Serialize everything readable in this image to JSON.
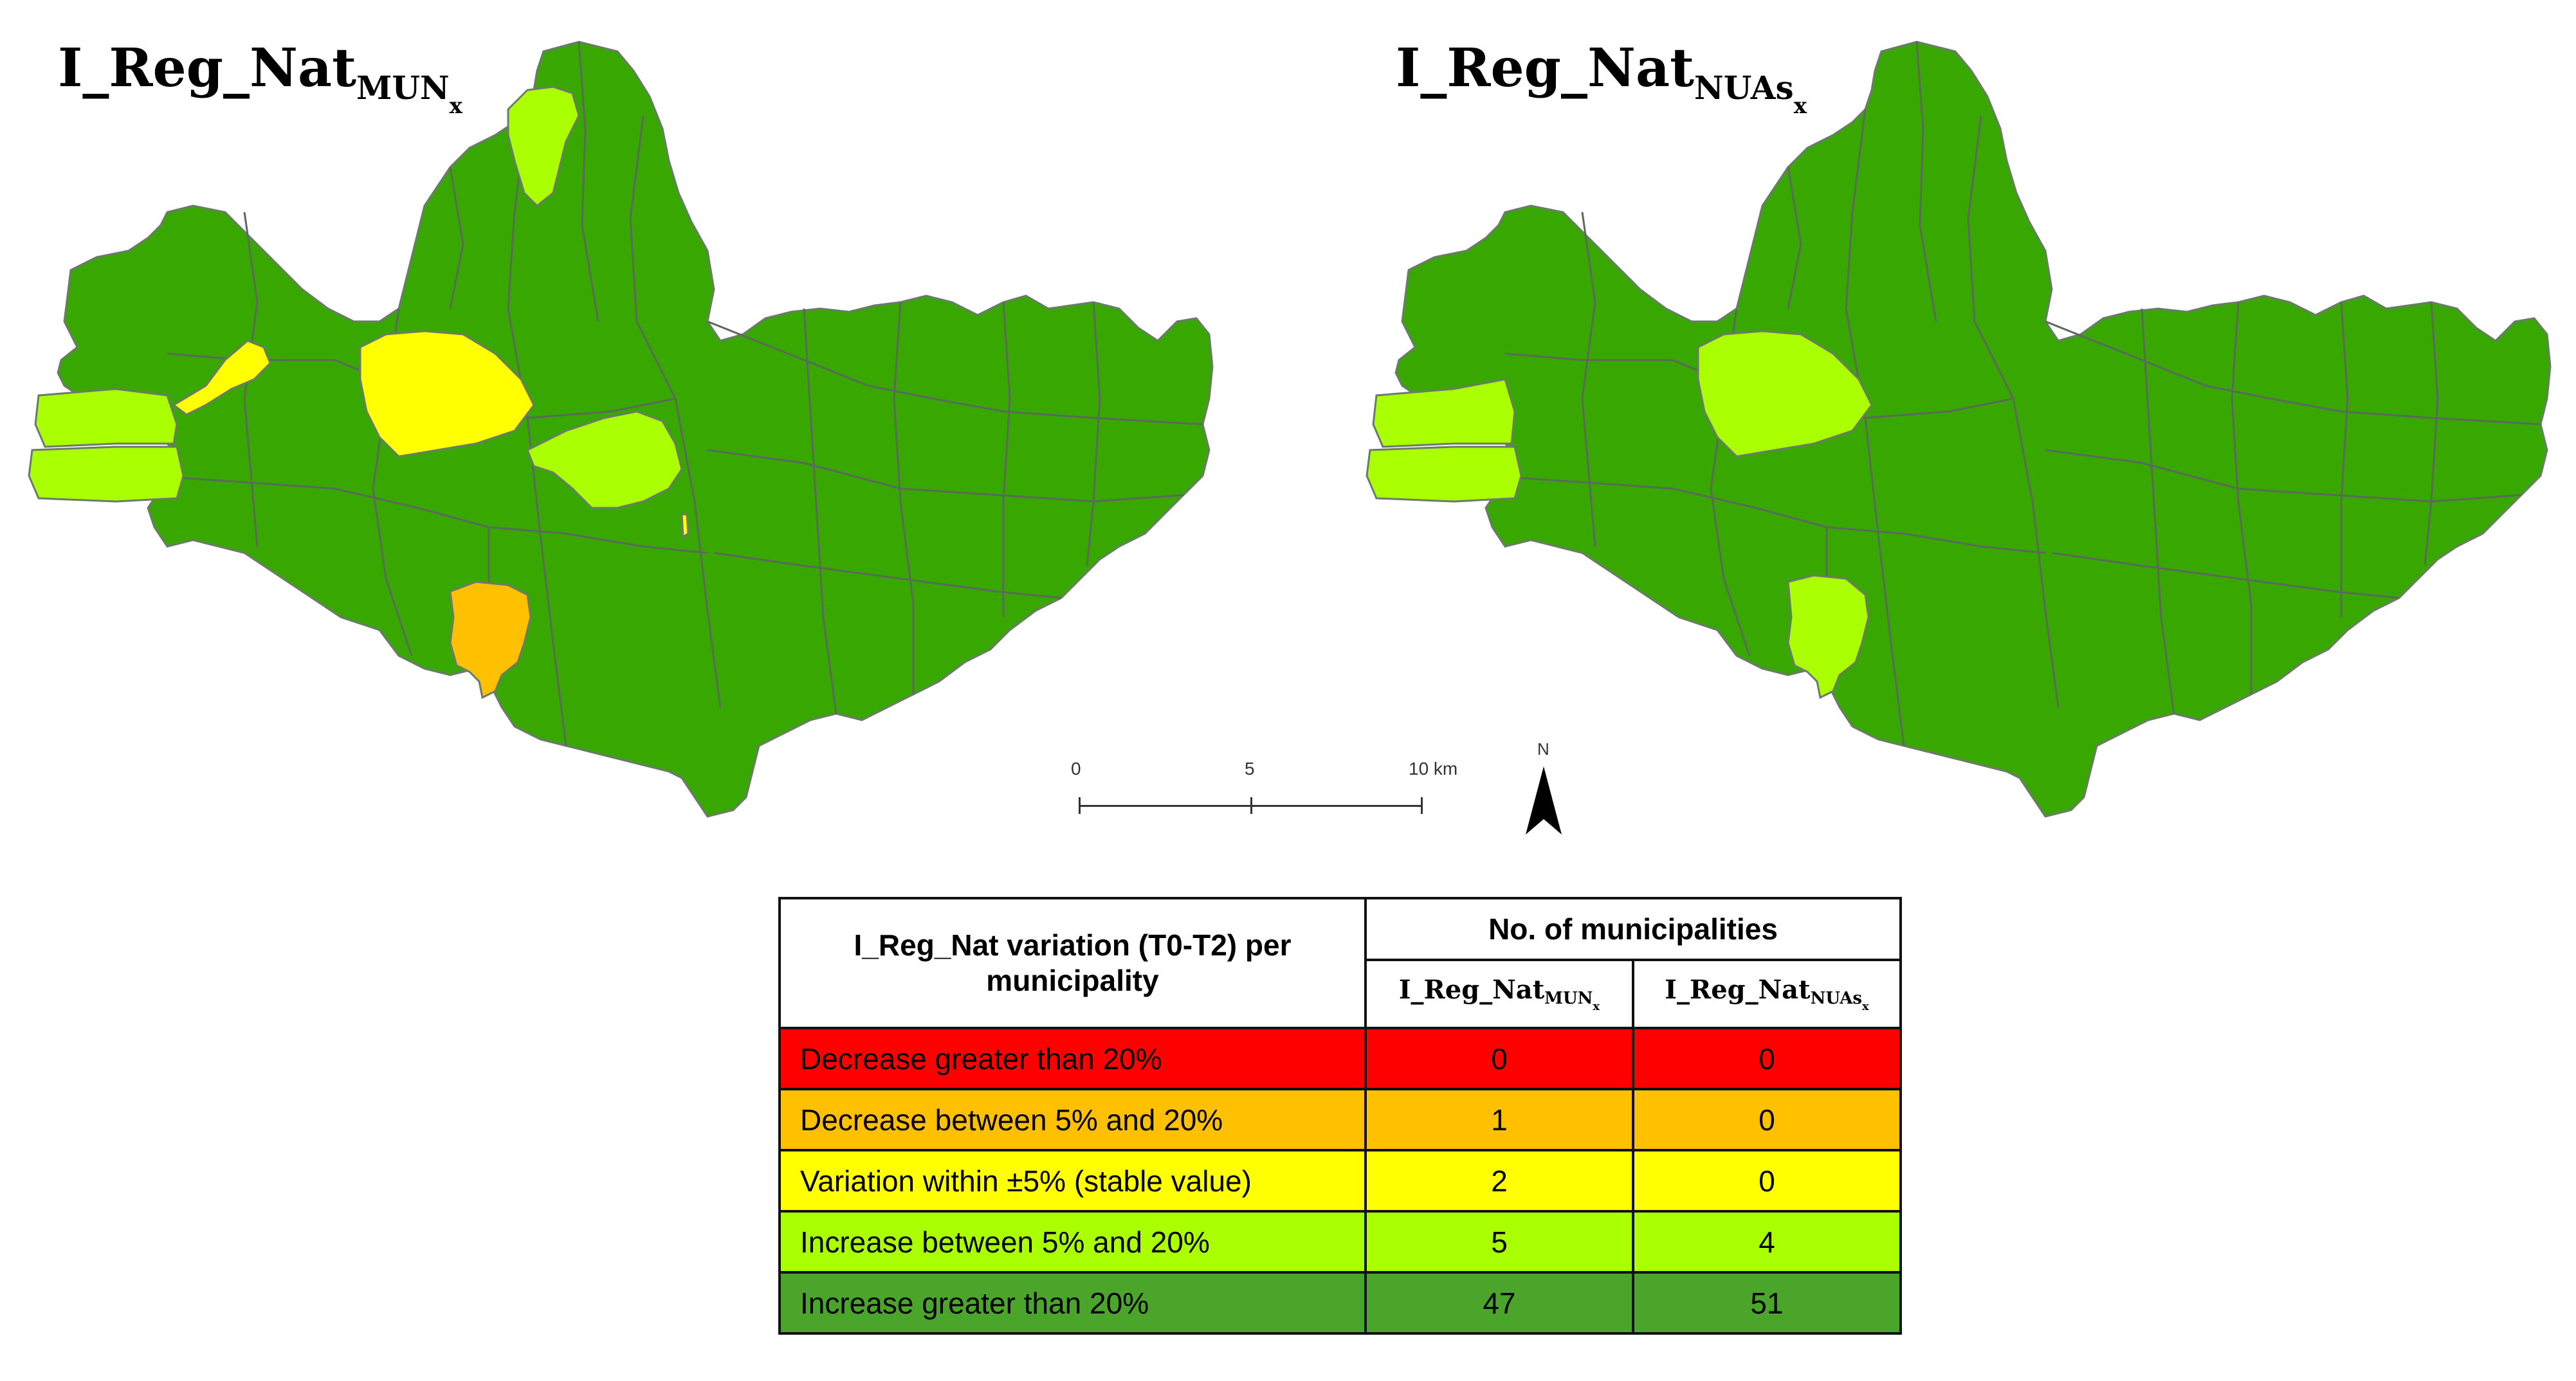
{
  "maps": [
    {
      "title_main": "I_Reg_Nat",
      "title_sub": "MUN",
      "title_subsub": "x"
    },
    {
      "title_main": "I_Reg_Nat",
      "title_sub": "NUAs",
      "title_subsub": "x"
    }
  ],
  "scale_bar": {
    "labels": [
      "0",
      "5",
      "10 km"
    ]
  },
  "north_arrow": {
    "label": "N"
  },
  "colors": {
    "decrease_gt_20": "#ff0000",
    "decrease_5_20": "#ffc000",
    "stable": "#ffff00",
    "increase_5_20": "#aaff00",
    "increase_gt_20": "#4aa52a",
    "map_green": "#38a800",
    "border": "#6b7a6b"
  },
  "legend_table": {
    "header_variation": "I_Reg_Nat variation (T0-T2) per municipality",
    "header_count": "No. of municipalities",
    "col1_main": "I_Reg_Nat",
    "col1_sub": "MUN",
    "col1_subsub": "x",
    "col2_main": "I_Reg_Nat",
    "col2_sub": "NUAs",
    "col2_subsub": "x",
    "rows": [
      {
        "category": "Decrease greater than 20%",
        "mun": "0",
        "nuas": "0",
        "color": "#ff0000"
      },
      {
        "category": "Decrease between 5% and 20%",
        "mun": "1",
        "nuas": "0",
        "color": "#ffc000"
      },
      {
        "category": "Variation within ±5% (stable value)",
        "mun": "2",
        "nuas": "0",
        "color": "#ffff00"
      },
      {
        "category": "Increase between 5% and 20%",
        "mun": "5",
        "nuas": "4",
        "color": "#aaff00"
      },
      {
        "category": "Increase greater than 20%",
        "mun": "47",
        "nuas": "51",
        "color": "#4aa52a"
      }
    ]
  }
}
